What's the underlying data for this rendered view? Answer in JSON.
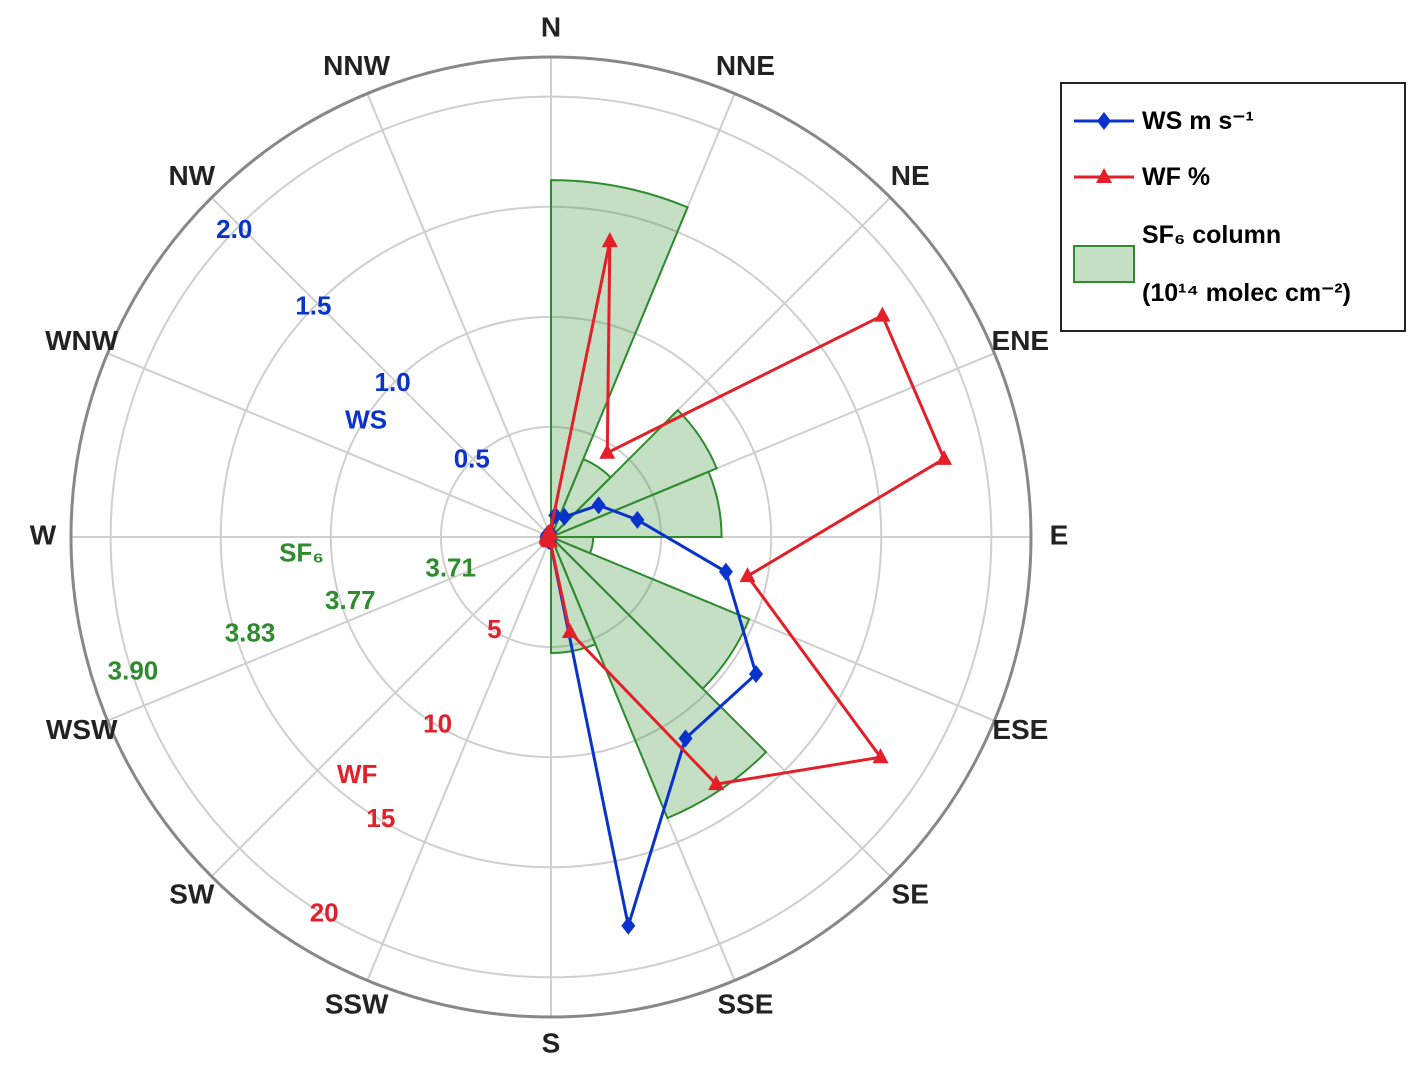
{
  "chart_data": {
    "type": "polar-rose",
    "categories": [
      "N",
      "NNE",
      "NE",
      "ENE",
      "E",
      "ESE",
      "SE",
      "SSE",
      "S",
      "SSW",
      "SW",
      "WSW",
      "W",
      "WNW",
      "NW",
      "NNW"
    ],
    "series": [
      {
        "name": "WS m s⁻¹",
        "type": "line",
        "marker": "diamond",
        "color": "#0a33cc",
        "axis_label": "WS",
        "rlim": [
          0,
          2.18
        ],
        "rticks": [
          0.5,
          {
            "value": 1,
            "label": "1.0"
          },
          1.5,
          {
            "value": 2,
            "label": "2.0"
          }
        ],
        "values": [
          0.1,
          0.11,
          0.26,
          0.4,
          0.81,
          1.12,
          1.1,
          1.8,
          0.02,
          0.02,
          0.02,
          0.02,
          0.02,
          0.02,
          0.02,
          0.02
        ]
      },
      {
        "name": "WF %",
        "type": "line",
        "marker": "triangle",
        "color": "#e3202a",
        "axis_label": "WF",
        "rlim": [
          0,
          21.8
        ],
        "rticks": [
          5,
          10,
          15,
          20
        ],
        "values": [
          13.7,
          4.6,
          18.1,
          18.2,
          9.1,
          18.0,
          13.5,
          4.4,
          0.2,
          0.2,
          0.2,
          0.2,
          0.2,
          0.2,
          0.2,
          0.2
        ]
      },
      {
        "name": "SF₆ column\n(10¹⁴ molec cm⁻²)",
        "type": "bar",
        "color": "#2e8b2e",
        "axis_label": "SF₆",
        "rlim": [
          3.65,
          3.923
        ],
        "rticks": [
          3.71,
          3.77,
          3.83,
          {
            "value": 3.9,
            "label": "3.90"
          }
        ],
        "values": [
          3.853,
          3.698,
          3.752,
          3.747,
          3.674,
          3.772,
          3.823,
          3.716,
          null,
          null,
          null,
          null,
          null,
          null,
          null,
          null
        ]
      }
    ],
    "grid": true,
    "legend": "upper right"
  }
}
